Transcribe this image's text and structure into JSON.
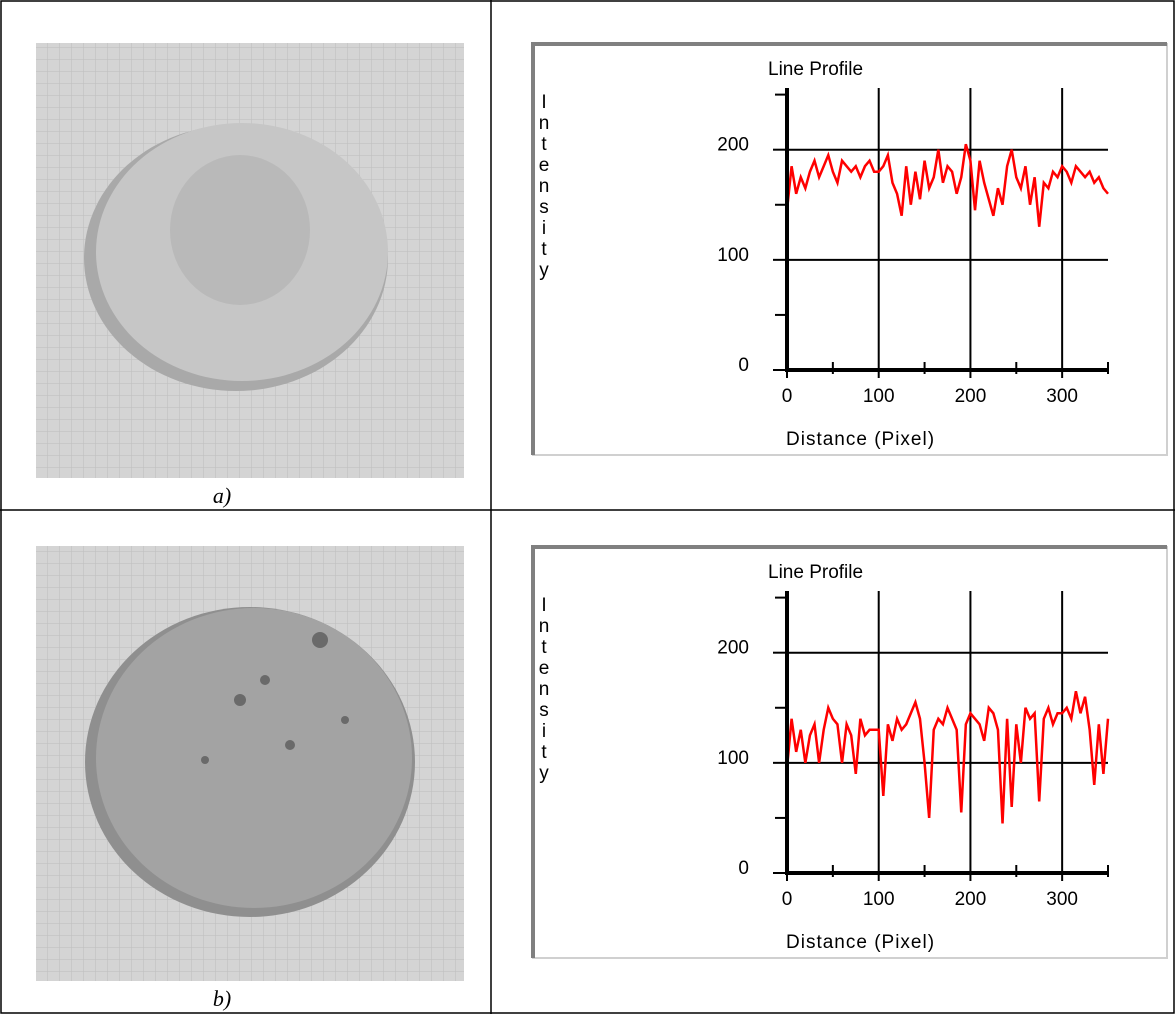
{
  "chart_data": [
    {
      "type": "line",
      "title": "Line Profile",
      "xlabel": "Distance (Pixel)",
      "ylabel": "Intensity",
      "xlim": [
        0,
        350
      ],
      "ylim": [
        0,
        256
      ],
      "xticks": [
        0,
        100,
        200,
        300
      ],
      "yticks": [
        0,
        100,
        200
      ],
      "xticks_minor": [
        50,
        150,
        250,
        350
      ],
      "yticks_minor": [
        50,
        150,
        250
      ],
      "grid": true,
      "x": [
        0,
        5,
        10,
        15,
        20,
        25,
        30,
        35,
        40,
        45,
        50,
        55,
        60,
        65,
        70,
        75,
        80,
        85,
        90,
        95,
        100,
        105,
        110,
        115,
        120,
        125,
        130,
        135,
        140,
        145,
        150,
        155,
        160,
        165,
        170,
        175,
        180,
        185,
        190,
        195,
        200,
        205,
        210,
        215,
        220,
        225,
        230,
        235,
        240,
        245,
        250,
        255,
        260,
        265,
        270,
        275,
        280,
        285,
        290,
        295,
        300,
        305,
        310,
        315,
        320,
        325,
        330,
        335,
        340,
        345,
        350
      ],
      "series": [
        {
          "color": "#ff0000",
          "values": [
            145,
            185,
            160,
            175,
            165,
            180,
            190,
            175,
            185,
            195,
            180,
            170,
            190,
            185,
            180,
            185,
            175,
            185,
            190,
            180,
            180,
            185,
            195,
            170,
            160,
            140,
            185,
            150,
            180,
            155,
            190,
            165,
            175,
            200,
            170,
            185,
            180,
            160,
            175,
            205,
            190,
            145,
            190,
            170,
            155,
            140,
            165,
            150,
            185,
            200,
            175,
            165,
            185,
            150,
            175,
            130,
            170,
            165,
            180,
            175,
            185,
            180,
            170,
            185,
            180,
            175,
            180,
            170,
            175,
            165,
            160
          ]
        }
      ]
    },
    {
      "type": "line",
      "title": "Line Profile",
      "xlabel": "Distance (Pixel)",
      "ylabel": "Intensity",
      "xlim": [
        0,
        350
      ],
      "ylim": [
        0,
        256
      ],
      "xticks": [
        0,
        100,
        200,
        300
      ],
      "yticks": [
        0,
        100,
        200
      ],
      "xticks_minor": [
        50,
        150,
        250,
        350
      ],
      "yticks_minor": [
        50,
        150,
        250
      ],
      "grid": true,
      "x": [
        0,
        5,
        10,
        15,
        20,
        25,
        30,
        35,
        40,
        45,
        50,
        55,
        60,
        65,
        70,
        75,
        80,
        85,
        90,
        95,
        100,
        105,
        110,
        115,
        120,
        125,
        130,
        135,
        140,
        145,
        150,
        155,
        160,
        165,
        170,
        175,
        180,
        185,
        190,
        195,
        200,
        205,
        210,
        215,
        220,
        225,
        230,
        235,
        240,
        245,
        250,
        255,
        260,
        265,
        270,
        275,
        280,
        285,
        290,
        295,
        300,
        305,
        310,
        315,
        320,
        325,
        330,
        335,
        340,
        345,
        350
      ],
      "series": [
        {
          "color": "#ff0000",
          "values": [
            95,
            140,
            110,
            130,
            100,
            125,
            135,
            100,
            130,
            150,
            140,
            135,
            100,
            135,
            125,
            90,
            140,
            125,
            130,
            130,
            130,
            70,
            135,
            120,
            140,
            130,
            135,
            145,
            155,
            140,
            100,
            50,
            130,
            140,
            135,
            150,
            140,
            130,
            55,
            135,
            145,
            140,
            135,
            120,
            150,
            145,
            130,
            45,
            140,
            60,
            135,
            100,
            150,
            140,
            145,
            65,
            140,
            150,
            135,
            145,
            145,
            150,
            140,
            165,
            145,
            160,
            130,
            80,
            135,
            90,
            140
          ]
        }
      ]
    }
  ],
  "captions": [
    "a)",
    "b)"
  ]
}
